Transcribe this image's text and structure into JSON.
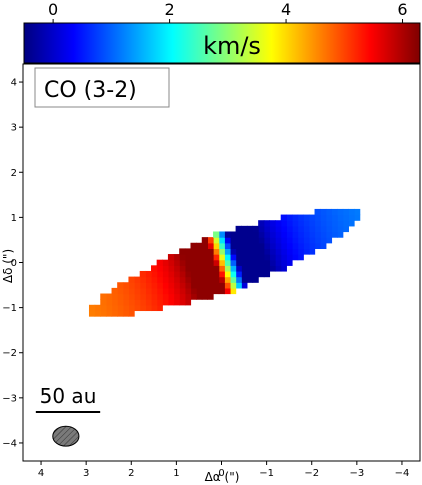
{
  "chart_data": {
    "type": "heatmap",
    "title": "",
    "xlabel": "Δα (\")",
    "ylabel": "Δδ (\")",
    "xlim": [
      4.4,
      -4.4
    ],
    "ylim": [
      -4.4,
      4.4
    ],
    "x_ticks": [
      4,
      3,
      2,
      1,
      0,
      -1,
      -2,
      -3,
      -4
    ],
    "y_ticks": [
      4,
      3,
      2,
      1,
      0,
      -1,
      -2,
      -3,
      -4
    ],
    "x_tick_labels": [
      "4",
      "3",
      "2",
      "1",
      "0",
      "−1",
      "−2",
      "−3",
      "−4"
    ],
    "y_tick_labels": [
      "4",
      "3",
      "2",
      "1",
      "0",
      "−1",
      "−2",
      "−3",
      "−4"
    ],
    "grid": false,
    "colorbar": {
      "label": "km/s",
      "range": [
        -0.5,
        6.3
      ],
      "ticks": [
        0,
        2,
        4,
        6
      ],
      "tick_labels": [
        "0",
        "2",
        "4",
        "6"
      ],
      "colormap": "jet",
      "placement": "top"
    },
    "panel_label": "CO (3-2)",
    "scale_bar": {
      "label": "50 au",
      "length_arcsec": 0.62
    },
    "beam": {
      "x": 3.45,
      "y": -3.85,
      "major_arcsec": 0.58,
      "minor_arcsec": 0.44
    },
    "emission_region": {
      "center_arcsec": [
        -0.1,
        -0.0
      ],
      "position_angle_deg": 20,
      "half_extent_major_arcsec": 3.2,
      "half_extent_minor_arcsec": 0.5,
      "v_systemic_kms": 2.9,
      "v_min_kms": -0.4,
      "v_max_kms": 6.2,
      "red_side": "east",
      "blue_side": "west"
    }
  },
  "colors": {
    "jet": [
      "#00007f",
      "#0000ff",
      "#007fff",
      "#00ffff",
      "#7fff7f",
      "#ffff00",
      "#ff7f00",
      "#ff0000",
      "#7f0000"
    ],
    "beam_fill": "#7a7a7a"
  }
}
